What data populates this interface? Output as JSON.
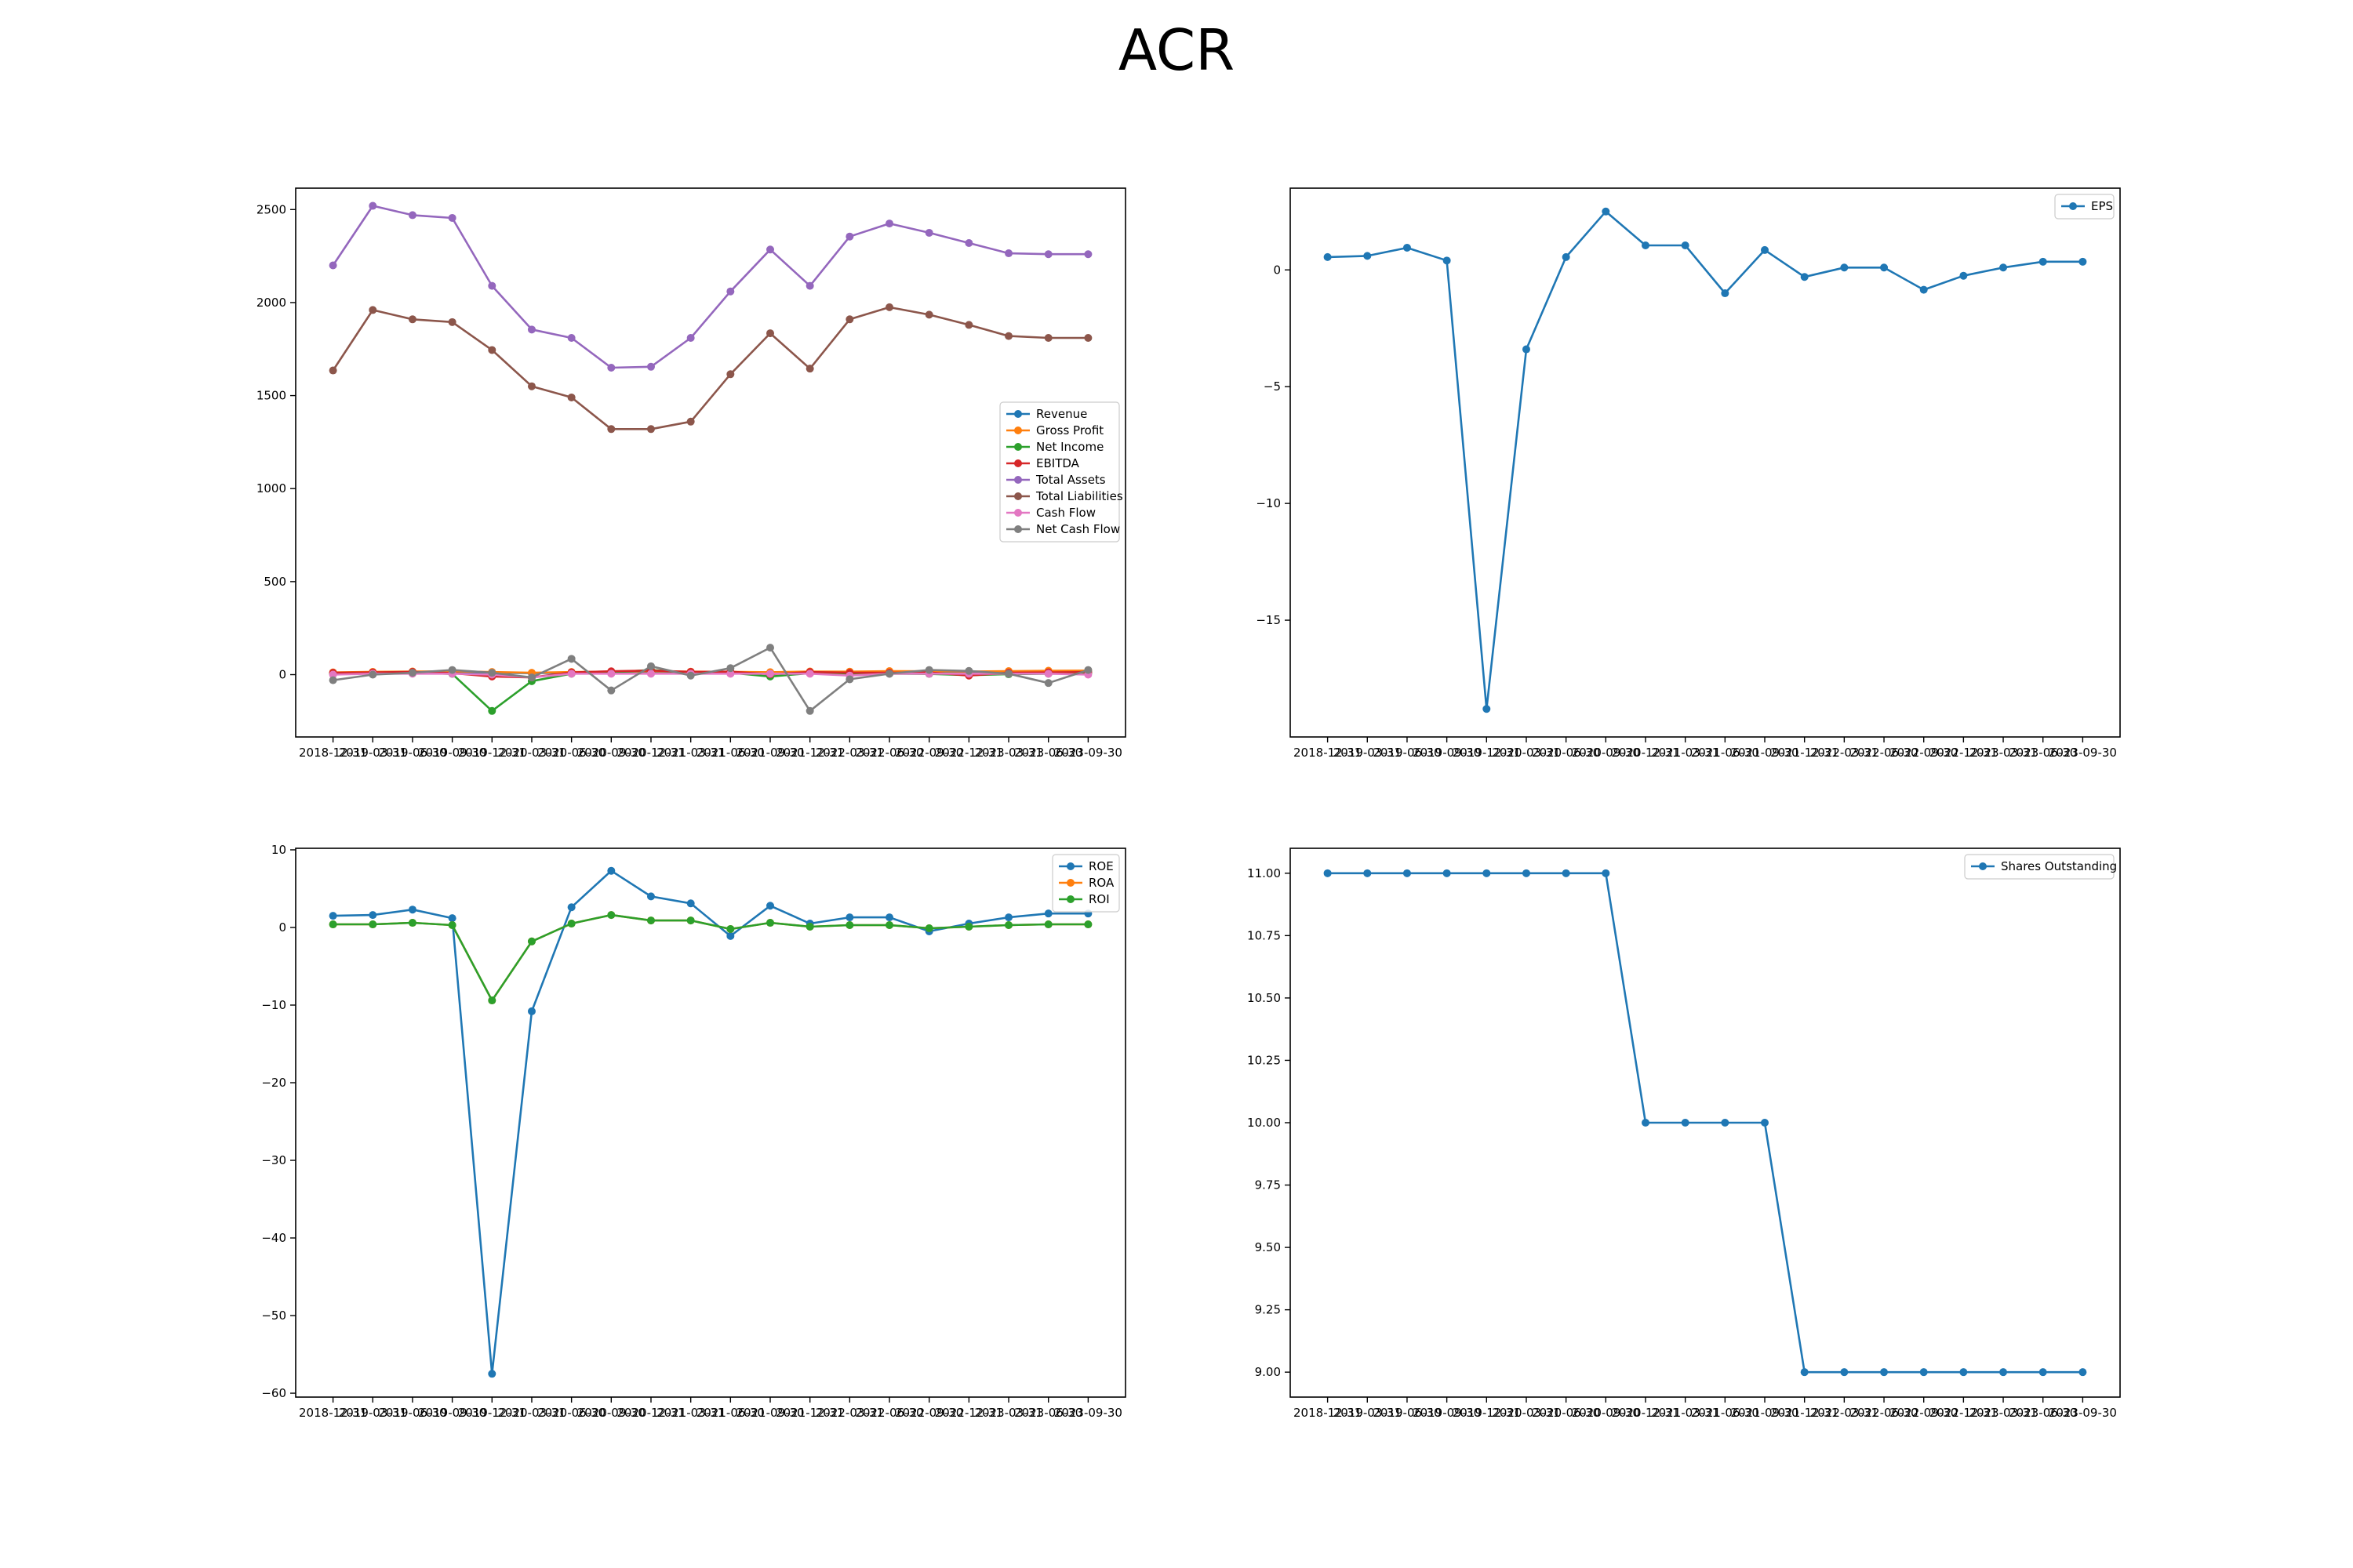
{
  "title": "ACR",
  "colors": {
    "c0": "#1f77b4",
    "c1": "#ff7f0e",
    "c2": "#2ca02c",
    "c3": "#d62728",
    "c4": "#9467bd",
    "c5": "#8c564b",
    "c6": "#e377c2",
    "c7": "#7f7f7f"
  },
  "chart_data": [
    {
      "type": "line",
      "x": [
        "2018-12-31",
        "2019-03-31",
        "2019-06-30",
        "2019-09-30",
        "2019-12-31",
        "2020-03-31",
        "2020-06-30",
        "2020-09-30",
        "2020-12-31",
        "2021-03-31",
        "2021-06-30",
        "2021-09-30",
        "2021-12-31",
        "2022-03-31",
        "2022-06-30",
        "2022-09-30",
        "2022-12-31",
        "2023-03-31",
        "2023-06-30",
        "2023-09-30"
      ],
      "ylim": [
        -335,
        2615
      ],
      "yticks": [
        0,
        500,
        1000,
        1500,
        2000,
        2500
      ],
      "ytick_labels": [
        "0",
        "500",
        "1000",
        "1500",
        "2000",
        "2500"
      ],
      "legend_position": "center-right",
      "grid": false,
      "series": [
        {
          "name": "Revenue",
          "color": "#1f77b4",
          "values": [
            10,
            12,
            13,
            12,
            10,
            8,
            10,
            12,
            15,
            12,
            11,
            10,
            13,
            11,
            14,
            13,
            12,
            14,
            15,
            16
          ]
        },
        {
          "name": "Gross Profit",
          "color": "#ff7f0e",
          "values": [
            12,
            15,
            17,
            18,
            14,
            10,
            14,
            16,
            18,
            16,
            15,
            13,
            17,
            16,
            19,
            18,
            17,
            19,
            21,
            22
          ]
        },
        {
          "name": "Net Income",
          "color": "#2ca02c",
          "values": [
            5,
            6,
            10,
            4,
            -195,
            -35,
            5,
            12,
            25,
            10,
            10,
            -10,
            8,
            3,
            5,
            4,
            -3,
            2,
            5,
            7
          ]
        },
        {
          "name": "EBITDA",
          "color": "#d62728",
          "values": [
            10,
            12,
            15,
            8,
            -10,
            -15,
            12,
            18,
            22,
            15,
            16,
            2,
            14,
            10,
            10,
            12,
            -5,
            10,
            12,
            14
          ]
        },
        {
          "name": "Total Assets",
          "color": "#9467bd",
          "values": [
            2200,
            2520,
            2470,
            2455,
            2090,
            1855,
            1810,
            1650,
            1655,
            1810,
            2060,
            2285,
            2090,
            2355,
            2425,
            2375,
            2320,
            2265,
            2260,
            2260
          ]
        },
        {
          "name": "Total Liabilities",
          "color": "#8c564b",
          "values": [
            1635,
            1960,
            1910,
            1895,
            1745,
            1550,
            1490,
            1320,
            1320,
            1360,
            1615,
            1835,
            1645,
            1910,
            1975,
            1935,
            1880,
            1820,
            1810,
            1810
          ]
        },
        {
          "name": "Cash Flow",
          "color": "#e377c2",
          "values": [
            0,
            5,
            5,
            5,
            0,
            -15,
            5,
            5,
            5,
            5,
            5,
            5,
            5,
            -5,
            5,
            5,
            5,
            5,
            5,
            0
          ]
        },
        {
          "name": "Net Cash Flow",
          "color": "#7f7f7f",
          "values": [
            -30,
            0,
            10,
            25,
            10,
            -15,
            85,
            -85,
            45,
            -5,
            35,
            145,
            -195,
            -25,
            5,
            25,
            20,
            5,
            -45,
            25
          ]
        }
      ]
    },
    {
      "type": "line",
      "x": [
        "2018-12-31",
        "2019-03-31",
        "2019-06-30",
        "2019-09-30",
        "2019-12-31",
        "2020-03-31",
        "2020-06-30",
        "2020-09-30",
        "2020-12-31",
        "2021-03-31",
        "2021-06-30",
        "2021-09-30",
        "2021-12-31",
        "2022-03-31",
        "2022-06-30",
        "2022-09-30",
        "2022-12-31",
        "2023-03-31",
        "2023-06-30",
        "2023-09-30"
      ],
      "ylim": [
        -20,
        3.5
      ],
      "yticks": [
        -15,
        -10,
        -5,
        0
      ],
      "ytick_labels": [
        "−15",
        "−10",
        "−5",
        "0"
      ],
      "legend_position": "top-right",
      "grid": false,
      "series": [
        {
          "name": "EPS",
          "color": "#1f77b4",
          "values": [
            0.55,
            0.6,
            0.95,
            0.4,
            -18.8,
            -3.4,
            0.55,
            2.5,
            1.05,
            1.05,
            -1.0,
            0.85,
            -0.3,
            0.1,
            0.1,
            -0.85,
            -0.25,
            0.1,
            0.35,
            0.35
          ]
        }
      ]
    },
    {
      "type": "line",
      "x": [
        "2018-12-31",
        "2019-03-31",
        "2019-06-30",
        "2019-09-30",
        "2019-12-31",
        "2020-03-31",
        "2020-06-30",
        "2020-09-30",
        "2020-12-31",
        "2021-03-31",
        "2021-06-30",
        "2021-09-30",
        "2021-12-31",
        "2022-03-31",
        "2022-06-30",
        "2022-09-30",
        "2022-12-31",
        "2023-03-31",
        "2023-06-30",
        "2023-09-30"
      ],
      "ylim": [
        -60.5,
        10.2
      ],
      "yticks": [
        -60,
        -50,
        -40,
        -30,
        -20,
        -10,
        0,
        10
      ],
      "ytick_labels": [
        "−60",
        "−50",
        "−40",
        "−30",
        "−20",
        "−10",
        "0",
        "10"
      ],
      "legend_position": "top-right",
      "grid": false,
      "series": [
        {
          "name": "ROE",
          "color": "#1f77b4",
          "values": [
            1.5,
            1.6,
            2.3,
            1.2,
            -57.5,
            -10.8,
            2.6,
            7.3,
            4.0,
            3.1,
            -1.1,
            2.8,
            0.5,
            1.3,
            1.3,
            -0.5,
            0.5,
            1.3,
            1.8,
            1.8
          ]
        },
        {
          "name": "ROA",
          "color": "#ff7f0e",
          "values": [
            0.4,
            0.4,
            0.6,
            0.3,
            -9.4,
            -1.8,
            0.5,
            1.6,
            0.9,
            0.9,
            -0.2,
            0.6,
            0.1,
            0.3,
            0.3,
            -0.1,
            0.1,
            0.3,
            0.4,
            0.4
          ]
        },
        {
          "name": "ROI",
          "color": "#2ca02c",
          "values": [
            0.4,
            0.4,
            0.6,
            0.3,
            -9.4,
            -1.8,
            0.5,
            1.6,
            0.9,
            0.9,
            -0.2,
            0.6,
            0.1,
            0.3,
            0.3,
            -0.1,
            0.1,
            0.3,
            0.4,
            0.4
          ]
        }
      ]
    },
    {
      "type": "line",
      "x": [
        "2018-12-31",
        "2019-03-31",
        "2019-06-30",
        "2019-09-30",
        "2019-12-31",
        "2020-03-31",
        "2020-06-30",
        "2020-09-30",
        "2020-12-31",
        "2021-03-31",
        "2021-06-30",
        "2021-09-30",
        "2021-12-31",
        "2022-03-31",
        "2022-06-30",
        "2022-09-30",
        "2022-12-31",
        "2023-03-31",
        "2023-06-30",
        "2023-09-30"
      ],
      "ylim": [
        8.9,
        11.1
      ],
      "yticks": [
        9.0,
        9.25,
        9.5,
        9.75,
        10.0,
        10.25,
        10.5,
        10.75,
        11.0
      ],
      "ytick_labels": [
        "9.00",
        "9.25",
        "9.50",
        "9.75",
        "10.00",
        "10.25",
        "10.50",
        "10.75",
        "11.00"
      ],
      "legend_position": "top-right",
      "grid": false,
      "series": [
        {
          "name": "Shares Outstanding",
          "color": "#1f77b4",
          "values": [
            11,
            11,
            11,
            11,
            11,
            11,
            11,
            11,
            10,
            10,
            10,
            10,
            9,
            9,
            9,
            9,
            9,
            9,
            9,
            9
          ]
        }
      ]
    }
  ]
}
